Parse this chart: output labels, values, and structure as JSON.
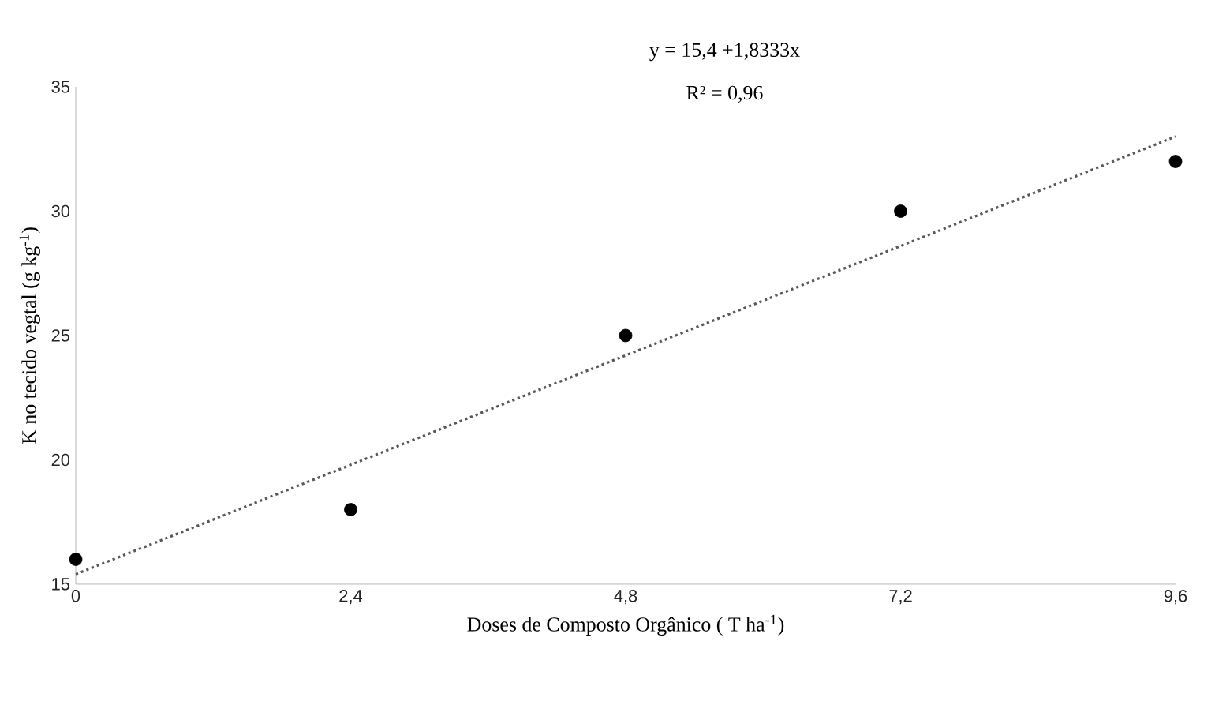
{
  "chart_data": {
    "type": "scatter",
    "xlabel": "Doses de Composto Orgânico ( T ha$^{-1}$)",
    "ylabel": "K no tecido vegtal (g kg$^{-1}$)",
    "annotations": [
      "y = 15,4 +1,8333x",
      "R² = 0,96"
    ],
    "xlim": [
      0,
      9.6
    ],
    "ylim": [
      15,
      35
    ],
    "xticks": [
      0,
      {
        "value": 2.4,
        "label": "2,4"
      },
      {
        "value": 4.8,
        "label": "4,8"
      },
      {
        "value": 7.2,
        "label": "7,2"
      },
      {
        "value": 9.6,
        "label": "9,6"
      }
    ],
    "yticks": [
      15,
      20,
      25,
      30,
      35
    ],
    "grid": false,
    "series": [
      {
        "color": "#000000",
        "marker": "circle",
        "x": [
          0,
          2.4,
          4.8,
          7.2,
          9.6
        ],
        "values": [
          16,
          18,
          25,
          30,
          32
        ]
      },
      {
        "type": "line",
        "color": "#595959",
        "marker": "none",
        "line_style": "dotted",
        "x": [
          0,
          9.6
        ],
        "values": [
          15.4,
          33.0
        ]
      }
    ]
  }
}
